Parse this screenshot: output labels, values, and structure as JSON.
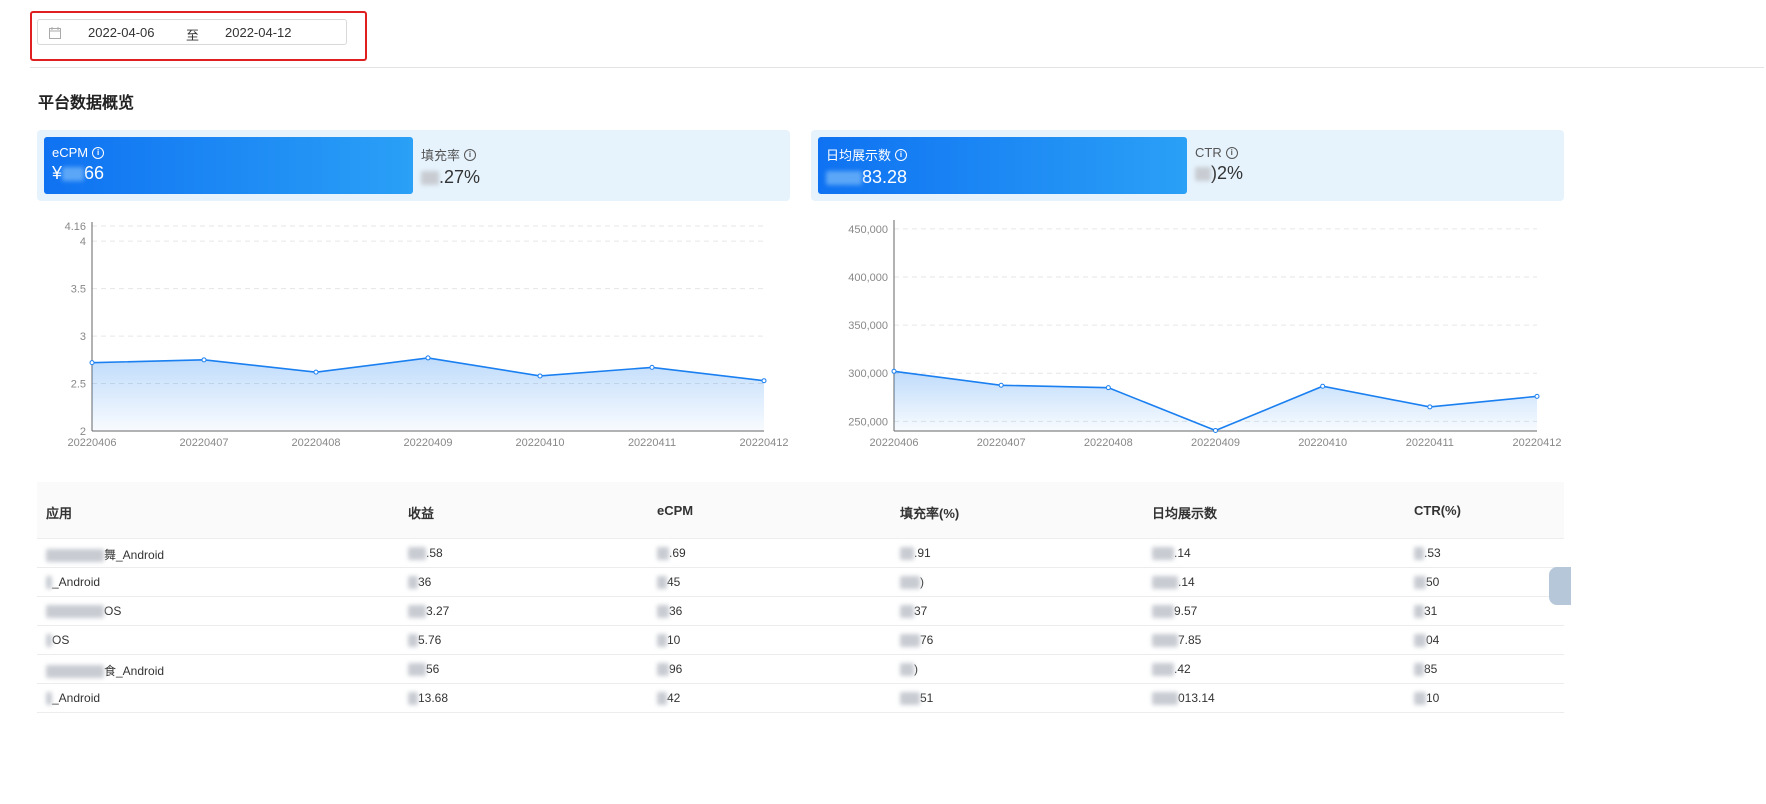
{
  "date_range": {
    "start": "2022-04-06",
    "separator": "至",
    "end": "2022-04-12"
  },
  "section_title": "平台数据概览",
  "left_panel": {
    "cards": [
      {
        "label": "eCPM",
        "value_prefix": "¥",
        "value_suffix": "66"
      },
      {
        "label": "填充率",
        "value_prefix": "",
        "value_suffix": ".27%"
      }
    ]
  },
  "right_panel": {
    "cards": [
      {
        "label": "日均展示数",
        "value_prefix": "",
        "value_suffix": "83.28"
      },
      {
        "label": "CTR",
        "value_prefix": "",
        "value_suffix": ")2%"
      }
    ]
  },
  "chart_data": [
    {
      "type": "area",
      "x": [
        "20220406",
        "20220407",
        "20220408",
        "20220409",
        "20220410",
        "20220411",
        "20220412"
      ],
      "y_ticks": [
        "2",
        "2.5",
        "3",
        "3.5",
        "4",
        "4.16"
      ],
      "ylim": [
        2,
        4.16
      ],
      "series": [
        {
          "values": [
            2.72,
            2.75,
            2.62,
            2.77,
            2.58,
            2.67,
            2.53
          ]
        }
      ],
      "color": "#1a7ff0",
      "grid": true
    },
    {
      "type": "area",
      "x": [
        "20220406",
        "20220407",
        "20220408",
        "20220409",
        "20220410",
        "20220411",
        "20220412"
      ],
      "y_ticks": [
        "250,000",
        "300,000",
        "350,000",
        "400,000",
        "450,000"
      ],
      "ylim": [
        240000,
        455000
      ],
      "series": [
        {
          "values": [
            302000,
            287500,
            285000,
            240500,
            286500,
            265000,
            276000
          ]
        }
      ],
      "color": "#1a7ff0",
      "grid": true
    }
  ],
  "table": {
    "headers": [
      "应用",
      "收益",
      "eCPM",
      "填充率(%)",
      "日均展示数",
      "CTR(%)"
    ],
    "rows": [
      [
        "舞_Android",
        ".58",
        ".69",
        ".91",
        ".14",
        ".53"
      ],
      [
        "_Android",
        "36",
        "45",
        ")",
        ".14",
        "50"
      ],
      [
        "OS",
        "3.27",
        "36",
        "37",
        "9.57",
        "31"
      ],
      [
        "OS",
        "5.76",
        "10",
        "76",
        "7.85",
        "04"
      ],
      [
        "食_Android",
        "56",
        "96",
        ")",
        ".42",
        "85"
      ],
      [
        "_Android",
        "13.68",
        "42",
        "51",
        "013.14",
        "10"
      ]
    ]
  },
  "colors": {
    "accent": "#1a7ff0",
    "highlight": "#e02020",
    "panel_bg": "#e6f3fd"
  }
}
